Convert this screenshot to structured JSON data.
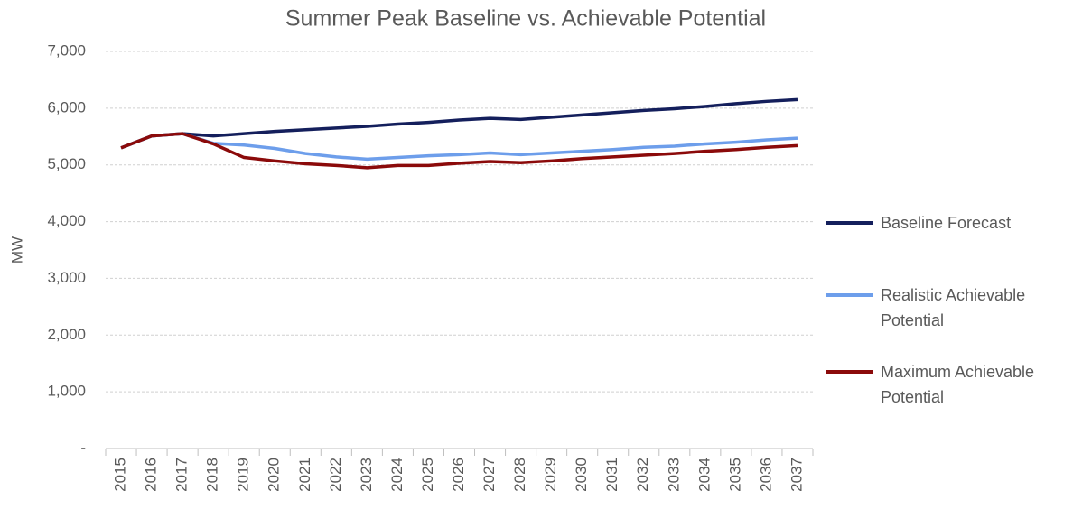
{
  "chart_data": {
    "type": "line",
    "title": "Summer Peak Baseline vs. Achievable Potential",
    "y_label": "MW",
    "categories": [
      "2015",
      "2016",
      "2017",
      "2018",
      "2019",
      "2020",
      "2021",
      "2022",
      "2023",
      "2024",
      "2025",
      "2026",
      "2027",
      "2028",
      "2029",
      "2030",
      "2031",
      "2032",
      "2033",
      "2034",
      "2035",
      "2036",
      "2037"
    ],
    "series": [
      {
        "name": "Baseline Forecast",
        "color": "#141f5c",
        "values": [
          5300,
          5510,
          5550,
          5510,
          5550,
          5590,
          5620,
          5650,
          5680,
          5720,
          5750,
          5790,
          5820,
          5800,
          5840,
          5880,
          5920,
          5960,
          5990,
          6030,
          6080,
          6120,
          6150
        ]
      },
      {
        "name": "Realistic Achievable Potential",
        "color": "#6d9eeb",
        "values": [
          5300,
          5510,
          5550,
          5380,
          5350,
          5290,
          5200,
          5140,
          5100,
          5130,
          5160,
          5180,
          5210,
          5180,
          5210,
          5240,
          5270,
          5310,
          5330,
          5370,
          5400,
          5440,
          5470
        ]
      },
      {
        "name": "Maximum Achievable Potential",
        "color": "#8b0a0a",
        "values": [
          5300,
          5510,
          5550,
          5370,
          5130,
          5070,
          5020,
          4990,
          4950,
          4990,
          4990,
          5030,
          5060,
          5040,
          5070,
          5110,
          5140,
          5170,
          5200,
          5240,
          5270,
          5310,
          5340
        ]
      }
    ],
    "ylim": [
      0,
      7000
    ],
    "yticks": [
      {
        "value": 0,
        "label": "-"
      },
      {
        "value": 1000,
        "label": "1,000"
      },
      {
        "value": 2000,
        "label": "2,000"
      },
      {
        "value": 3000,
        "label": "3,000"
      },
      {
        "value": 4000,
        "label": "4,000"
      },
      {
        "value": 5000,
        "label": "5,000"
      },
      {
        "value": 6000,
        "label": "6,000"
      },
      {
        "value": 7000,
        "label": "7,000"
      }
    ],
    "grid": true,
    "legend": "right"
  }
}
